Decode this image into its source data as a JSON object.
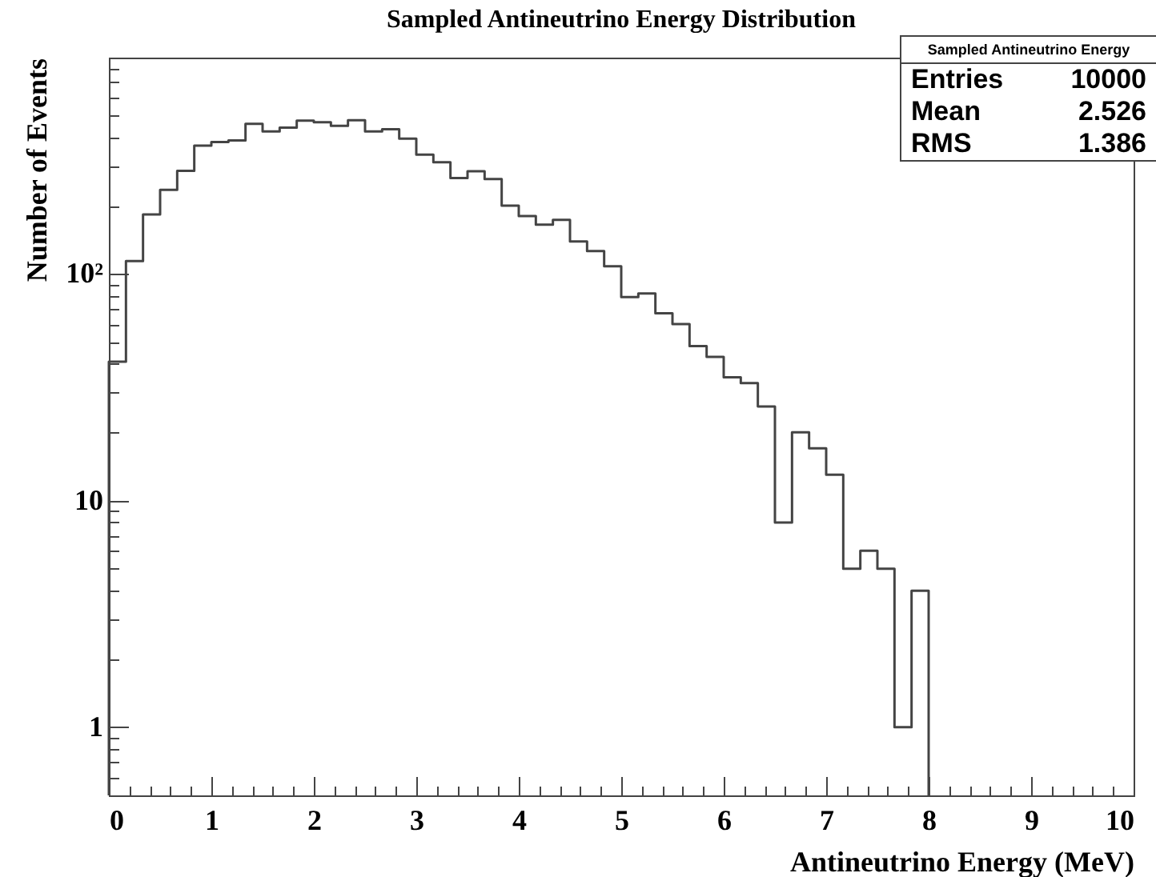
{
  "chart_data": {
    "type": "histogram",
    "title": "Sampled Antineutrino Energy Distribution",
    "xlabel": "Antineutrino Energy (MeV)",
    "ylabel": "Number of Events",
    "bins": [
      0,
      0.1667,
      0.3333,
      0.5,
      0.6667,
      0.8333,
      1,
      1.1667,
      1.3333,
      1.5,
      1.6667,
      1.8333,
      2,
      2.1667,
      2.3333,
      2.5,
      2.6667,
      2.8333,
      3,
      3.1667,
      3.3333,
      3.5,
      3.6667,
      3.8333,
      4,
      4.1667,
      4.3333,
      4.5,
      4.6667,
      4.8333,
      5,
      5.1667,
      5.3333,
      5.5,
      5.6667,
      5.8333,
      6,
      6.1667,
      6.3333,
      6.5,
      6.6667,
      6.8333,
      7,
      7.1667,
      7.3333,
      7.5,
      7.6667,
      7.8333,
      8
    ],
    "values": [
      41,
      114,
      183,
      235,
      285,
      368,
      382,
      388,
      459,
      425,
      442,
      474,
      467,
      450,
      476,
      425,
      435,
      395,
      336,
      311,
      265,
      284,
      262,
      200,
      180,
      165,
      173,
      139,
      126,
      108,
      79,
      82,
      67,
      60,
      48,
      43,
      35,
      33,
      26,
      8,
      20,
      17,
      13,
      5,
      6,
      5,
      1,
      4
    ],
    "color": "#444444",
    "log": "y",
    "xlim": [
      0,
      10
    ],
    "ylim": [
      0.5,
      900
    ],
    "xticks": [
      0,
      {
        "value": 0.2,
        "label": null
      },
      {
        "value": 0.4,
        "label": null
      },
      {
        "value": 0.6,
        "label": null
      },
      {
        "value": 0.8,
        "label": null
      },
      1,
      {
        "value": 1.2,
        "label": null
      },
      {
        "value": 1.4,
        "label": null
      },
      {
        "value": 1.6,
        "label": null
      },
      {
        "value": 1.8,
        "label": null
      },
      2,
      {
        "value": 2.2,
        "label": null
      },
      {
        "value": 2.4,
        "label": null
      },
      {
        "value": 2.6,
        "label": null
      },
      {
        "value": 2.8,
        "label": null
      },
      3,
      {
        "value": 3.2,
        "label": null
      },
      {
        "value": 3.4,
        "label": null
      },
      {
        "value": 3.6,
        "label": null
      },
      {
        "value": 3.8,
        "label": null
      },
      4,
      {
        "value": 4.2,
        "label": null
      },
      {
        "value": 4.4,
        "label": null
      },
      {
        "value": 4.6,
        "label": null
      },
      {
        "value": 4.8,
        "label": null
      },
      5,
      {
        "value": 5.2,
        "label": null
      },
      {
        "value": 5.4,
        "label": null
      },
      {
        "value": 5.6,
        "label": null
      },
      {
        "value": 5.8,
        "label": null
      },
      6,
      {
        "value": 6.2,
        "label": null
      },
      {
        "value": 6.4,
        "label": null
      },
      {
        "value": 6.6,
        "label": null
      },
      {
        "value": 6.8,
        "label": null
      },
      7,
      {
        "value": 7.2,
        "label": null
      },
      {
        "value": 7.4,
        "label": null
      },
      {
        "value": 7.6,
        "label": null
      },
      {
        "value": 7.8,
        "label": null
      },
      8,
      {
        "value": 8.2,
        "label": null
      },
      {
        "value": 8.4,
        "label": null
      },
      {
        "value": 8.6,
        "label": null
      },
      {
        "value": 8.8,
        "label": null
      },
      9,
      {
        "value": 9.2,
        "label": null
      },
      {
        "value": 9.4,
        "label": null
      },
      {
        "value": 9.6,
        "label": null
      },
      {
        "value": 9.8,
        "label": null
      },
      10
    ],
    "yticks": [
      {
        "value": 0.6,
        "label": null
      },
      {
        "value": 0.7,
        "label": null
      },
      {
        "value": 0.8,
        "label": null
      },
      {
        "value": 0.9,
        "label": null
      },
      1,
      {
        "value": 2,
        "label": null
      },
      {
        "value": 3,
        "label": null
      },
      {
        "value": 4,
        "label": null
      },
      {
        "value": 5,
        "label": null
      },
      {
        "value": 6,
        "label": null
      },
      {
        "value": 7,
        "label": null
      },
      {
        "value": 8,
        "label": null
      },
      {
        "value": 9,
        "label": null
      },
      10,
      {
        "value": 20,
        "label": null
      },
      {
        "value": 30,
        "label": null
      },
      {
        "value": 40,
        "label": null
      },
      {
        "value": 50,
        "label": null
      },
      {
        "value": 60,
        "label": null
      },
      {
        "value": 70,
        "label": null
      },
      {
        "value": 80,
        "label": null
      },
      {
        "value": 90,
        "label": null
      },
      {
        "value": 100,
        "label": "10²"
      },
      {
        "value": 200,
        "label": null
      },
      {
        "value": 300,
        "label": null
      },
      {
        "value": 400,
        "label": null
      },
      {
        "value": 500,
        "label": null
      },
      {
        "value": 600,
        "label": null
      },
      {
        "value": 700,
        "label": null
      },
      {
        "value": 800,
        "label": null
      }
    ],
    "annotations": [
      "Sampled Antineutrino Energy",
      "Entries",
      "10000",
      "Mean",
      "2.526",
      "RMS",
      "1.386"
    ]
  }
}
